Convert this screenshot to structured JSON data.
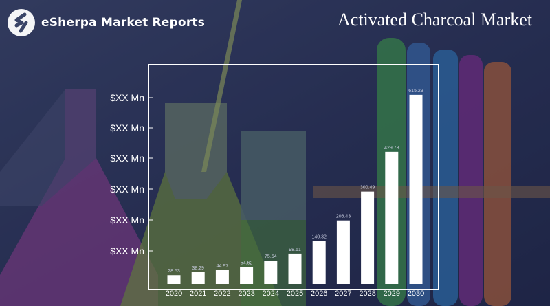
{
  "header": {
    "brand": "eSherpa Market Reports",
    "title": "Activated Charcoal Market"
  },
  "chart_data": {
    "type": "bar",
    "categories": [
      "2020",
      "2021",
      "2022",
      "2023",
      "2024",
      "2025",
      "2026",
      "2027",
      "2028",
      "2029",
      "2030"
    ],
    "values": [
      28.53,
      38.29,
      44.97,
      54.62,
      75.54,
      98.61,
      140.32,
      206.43,
      300.49,
      429.73,
      615.29
    ],
    "data_labels": [
      "28.53",
      "38.29",
      "44.97",
      "54.62",
      "75.54",
      "98.61",
      "140.32",
      "206.43",
      "300.49",
      "429.73",
      "615.29"
    ],
    "ytick_labels": [
      "$XX Mn",
      "$XX Mn",
      "$XX Mn",
      "$XX Mn",
      "$XX Mn",
      "$XX Mn"
    ],
    "ylim": [
      0,
      700
    ],
    "bar_color": "#ffffff",
    "grid": false
  },
  "colors": {
    "background_tint": "#2f3a6a",
    "frame": "#ffffff"
  }
}
